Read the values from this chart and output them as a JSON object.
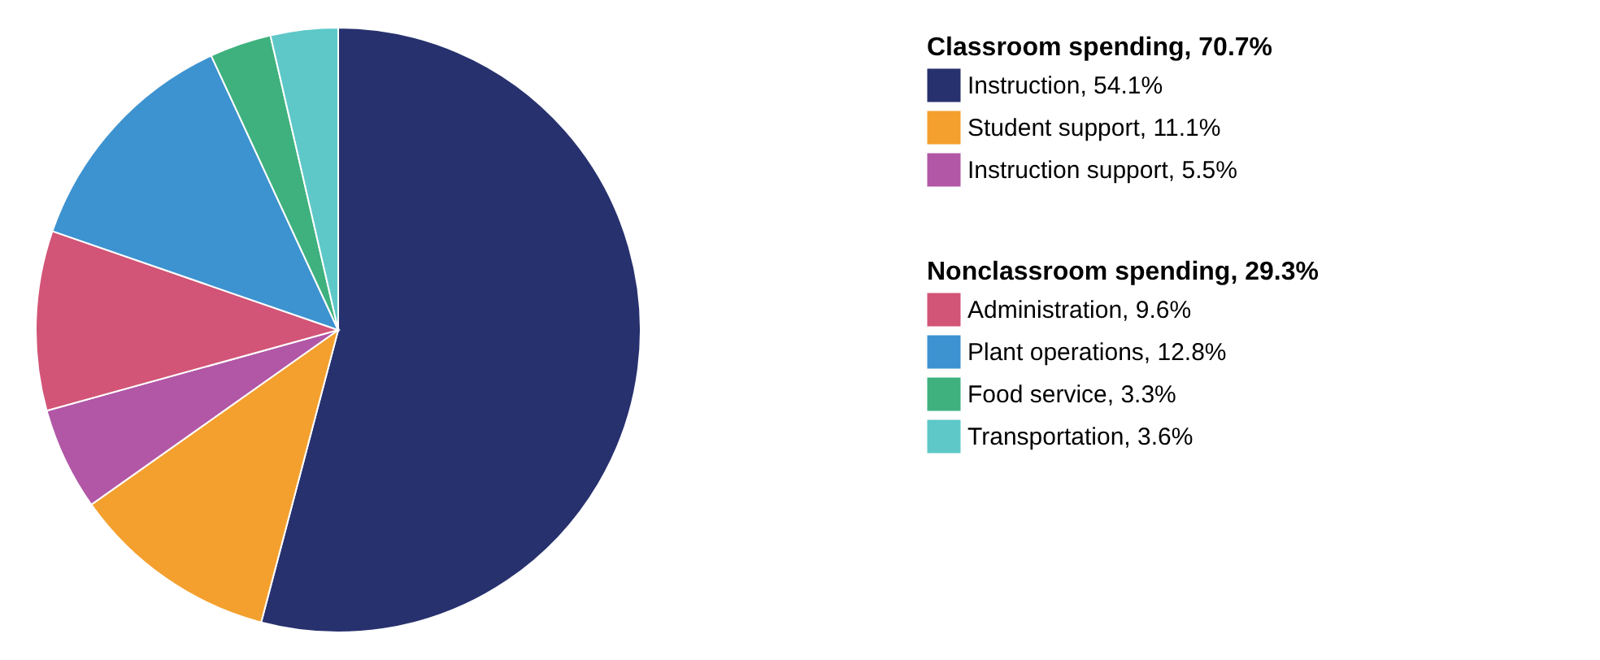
{
  "chart_data": {
    "type": "pie",
    "legend": "right",
    "categories": [
      "Instruction, 54.1%",
      "Student support, 11.1%",
      "Instruction support, 5.5%",
      "Administration, 9.6%",
      "Plant operations, 12.8%",
      "Food service, 3.3%",
      "Transportation, 3.6%"
    ],
    "values": [
      54.1,
      11.1,
      5.5,
      9.6,
      12.8,
      3.3,
      3.6
    ],
    "colors": [
      "#27316e",
      "#f4a02e",
      "#b157a6",
      "#d25476",
      "#3d93d0",
      "#3eb17e",
      "#5ec8c8"
    ],
    "annotations": [
      "Classroom spending, 70.7%",
      "Nonclassroom spending, 29.3%"
    ]
  }
}
